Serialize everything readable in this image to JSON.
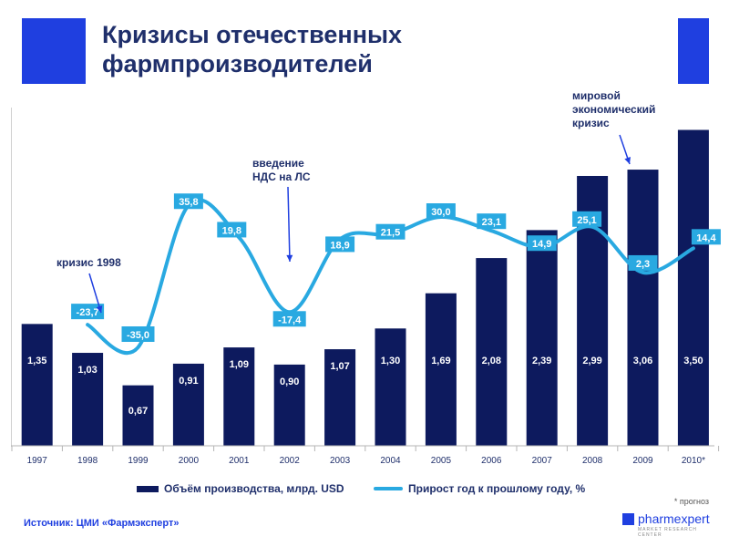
{
  "title_line1": "Кризисы отечественных",
  "title_line2": "фармпроизводителей",
  "annotations": {
    "crisis_1998": "кризис 1998",
    "vat_line1": "введение",
    "vat_line2": "НДС на ЛС",
    "world_line1": "мировой",
    "world_line2": "экономический",
    "world_line3": "кризис"
  },
  "legend": {
    "bars": "Объём производства, млрд. USD",
    "line": "Прирост год к прошлому году, %"
  },
  "footnote": "* прогноз",
  "source": "Источник: ЦМИ «Фармэксперт»",
  "logo": {
    "name": "pharmexpert",
    "subtitle": "MARKET RESEARCH CENTER"
  },
  "colors": {
    "bar": "#0d1a5e",
    "line": "#29a9e1",
    "accent": "#1f3fe0",
    "title": "#1f2f6b"
  },
  "chart_data": {
    "type": "bar+line",
    "categories": [
      "1997",
      "1998",
      "1999",
      "2000",
      "2001",
      "2002",
      "2003",
      "2004",
      "2005",
      "2006",
      "2007",
      "2008",
      "2009",
      "2010*"
    ],
    "series": [
      {
        "name": "Объём производства, млрд. USD",
        "type": "bar",
        "values": [
          1.35,
          1.03,
          0.67,
          0.91,
          1.09,
          0.9,
          1.07,
          1.3,
          1.69,
          2.08,
          2.39,
          2.99,
          3.06,
          3.5
        ],
        "labels": [
          "1,35",
          "1,03",
          "0,67",
          "0,91",
          "1,09",
          "0,90",
          "1,07",
          "1,30",
          "1,69",
          "2,08",
          "2,39",
          "2,99",
          "3,06",
          "3,50"
        ]
      },
      {
        "name": "Прирост год к прошлому году, %",
        "type": "line",
        "values": [
          null,
          -23.7,
          -35.0,
          35.8,
          19.8,
          -17.4,
          18.9,
          21.5,
          30.0,
          23.1,
          14.9,
          25.1,
          2.3,
          14.4
        ],
        "labels": [
          "",
          "-23,7",
          "-35,0",
          "35,8",
          "19,8",
          "-17,4",
          "18,9",
          "21,5",
          "30,0",
          "23,1",
          "14,9",
          "25,1",
          "2,3",
          "14,4"
        ]
      }
    ],
    "bar_ylim": [
      0,
      4.0
    ],
    "line_ylim": [
      -60,
      60
    ],
    "grid": false,
    "legend_position": "bottom"
  }
}
